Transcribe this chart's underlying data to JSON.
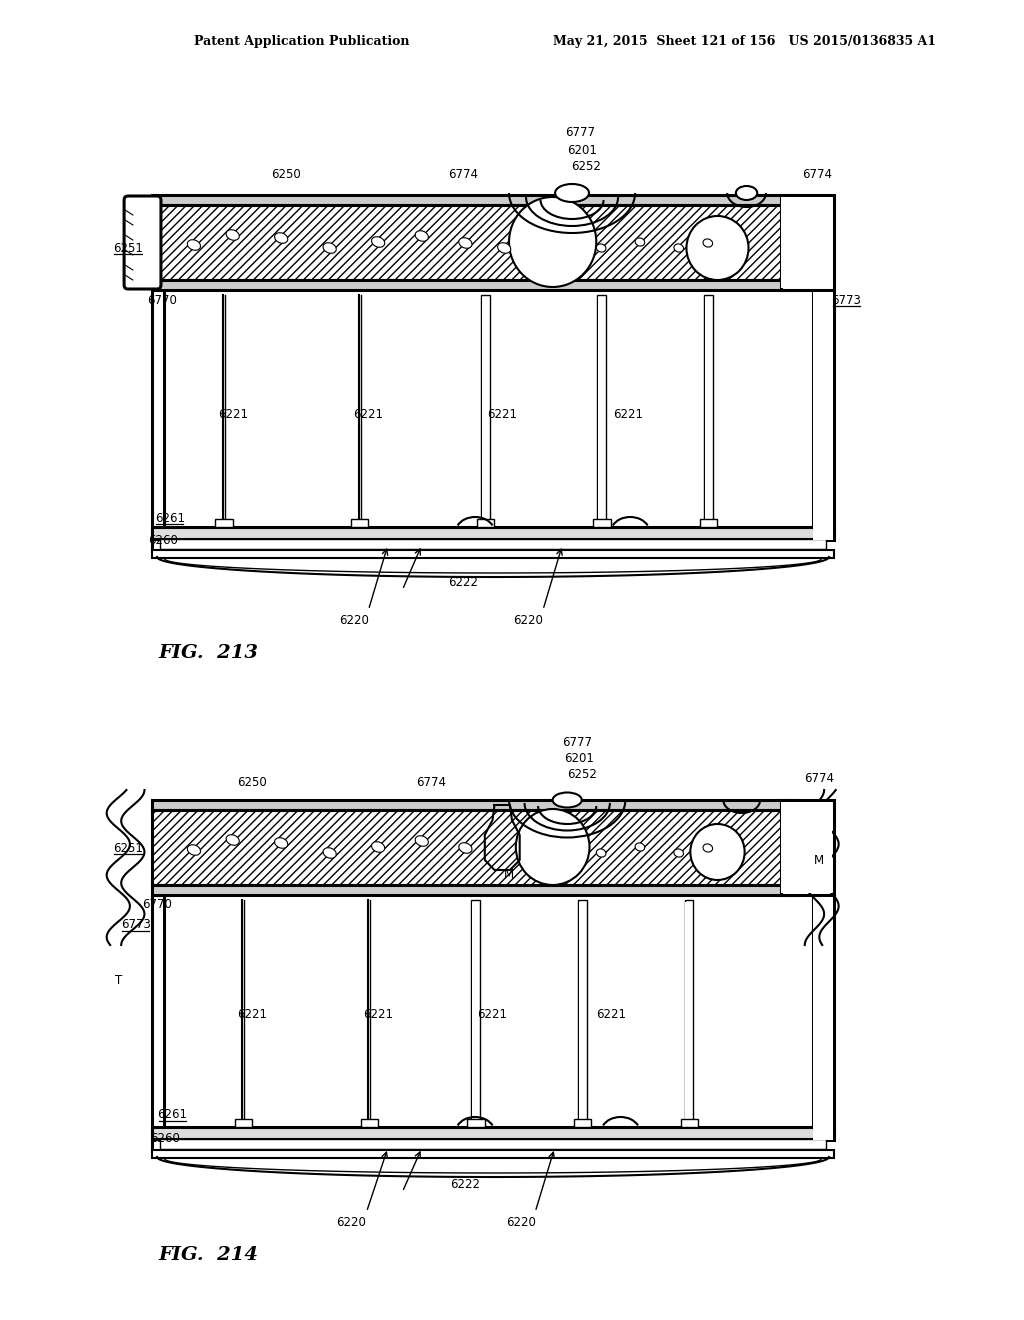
{
  "title_line1": "Patent Application Publication",
  "title_line2": "May 21, 2015  Sheet 121 of 156   US 2015/0136835 A1",
  "fig213_label": "FIG.  213",
  "fig214_label": "FIG.  214",
  "bg_color": "#ffffff",
  "line_color": "#000000"
}
